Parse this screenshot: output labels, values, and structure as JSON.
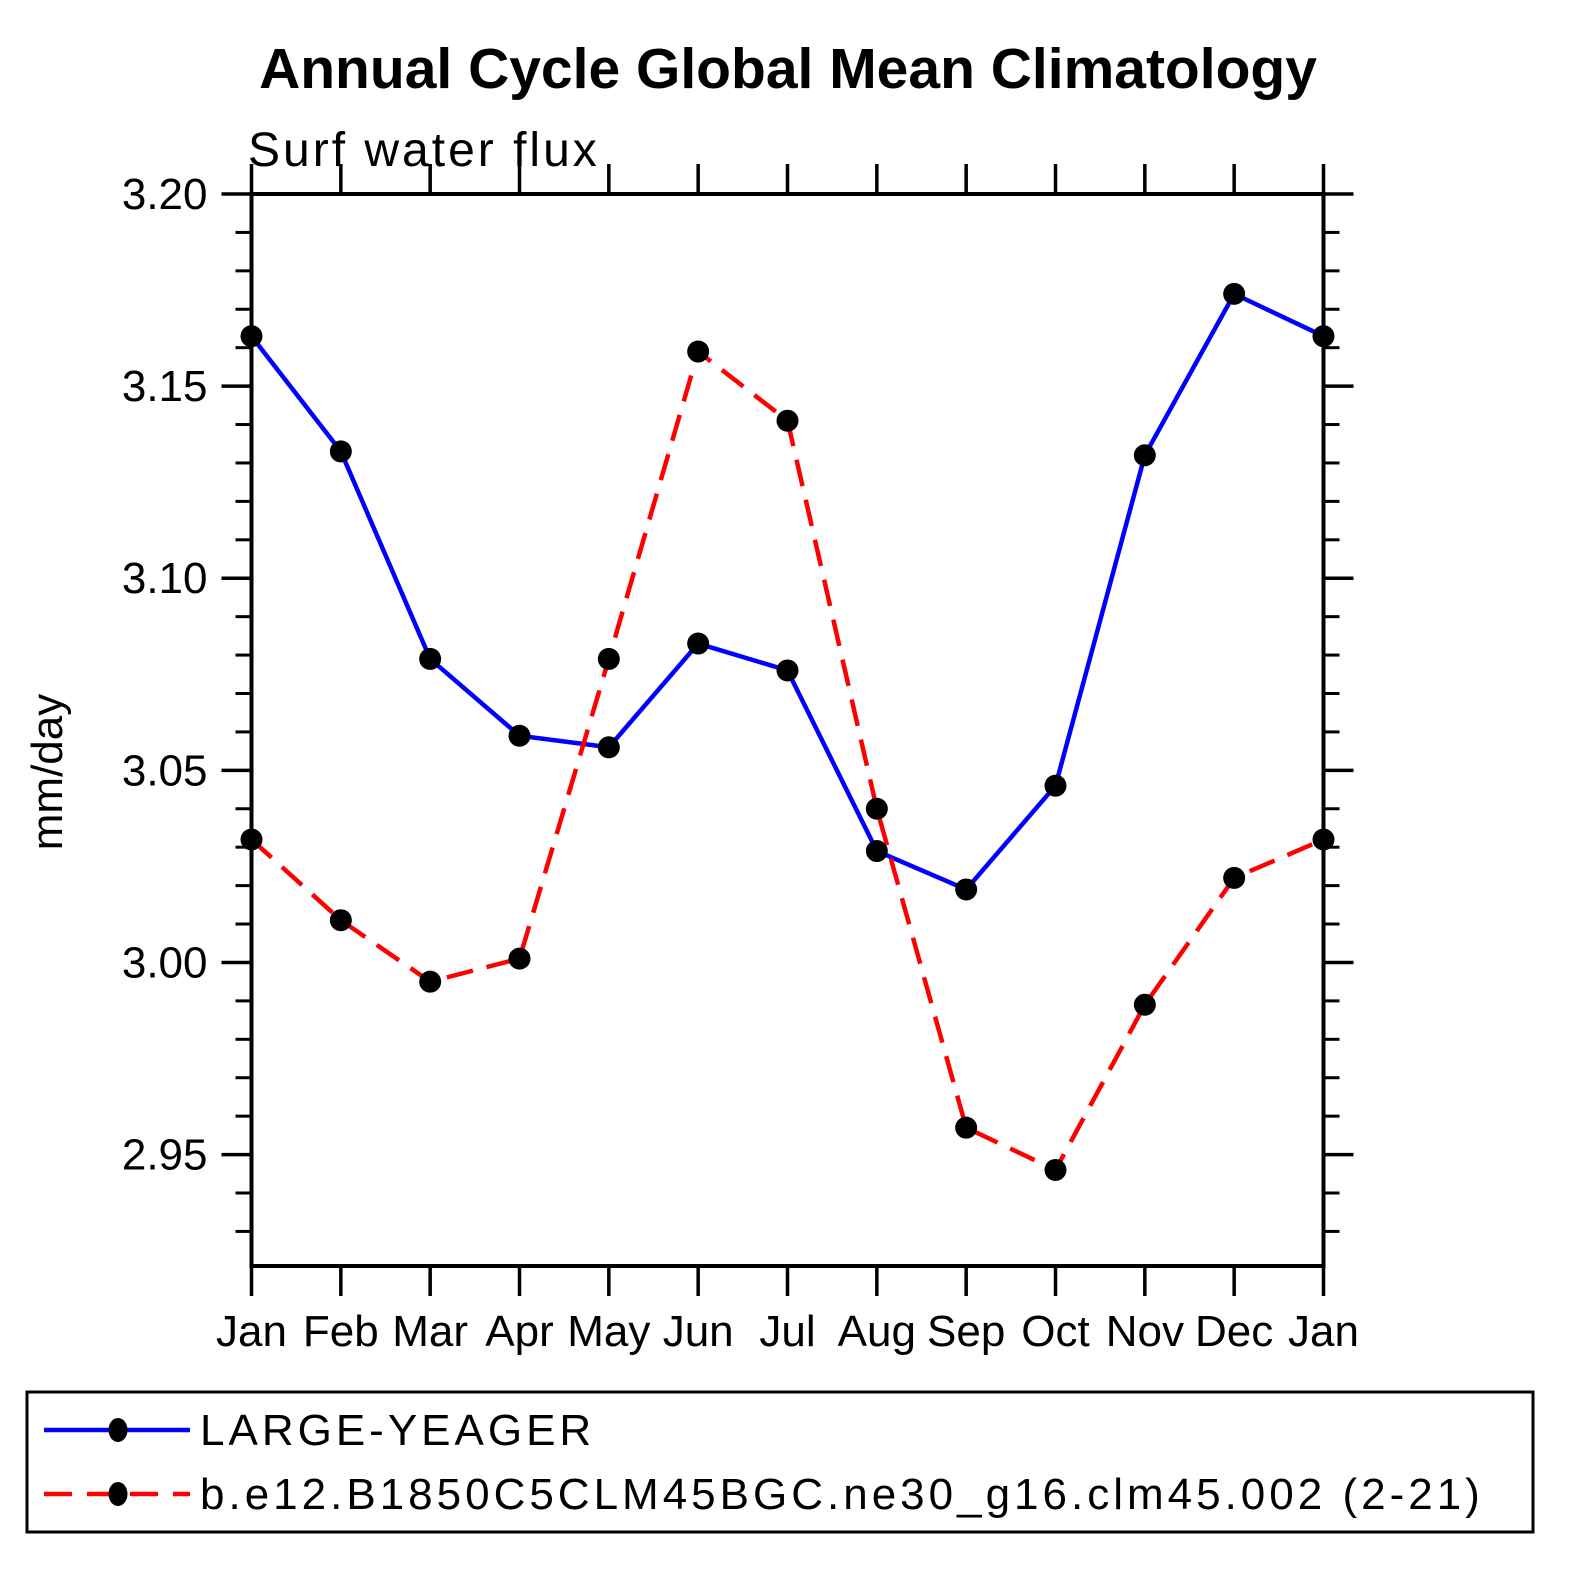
{
  "chart_data": {
    "type": "line",
    "title": "Annual Cycle Global Mean Climatology",
    "subtitle": "Surf water flux",
    "ylabel": "mm/day",
    "categories": [
      "Jan",
      "Feb",
      "Mar",
      "Apr",
      "May",
      "Jun",
      "Jul",
      "Aug",
      "Sep",
      "Oct",
      "Nov",
      "Dec",
      "Jan"
    ],
    "ylim": [
      2.921,
      3.2
    ],
    "ytick_major": [
      2.95,
      3.0,
      3.05,
      3.1,
      3.15,
      3.2
    ],
    "ytick_minor_step": 0.01,
    "grid": false,
    "legend_position": "bottom",
    "frame_color": "#000000",
    "marker_color": "#000000",
    "series": [
      {
        "name": "LARGE-YEAGER",
        "color": "#0000ff",
        "style": "solid",
        "marker": "circle",
        "values": [
          3.163,
          3.133,
          3.079,
          3.059,
          3.056,
          3.083,
          3.076,
          3.029,
          3.019,
          3.046,
          3.132,
          3.174,
          3.163
        ]
      },
      {
        "name": "b.e12.B1850C5CLM45BGC.ne30_g16.clm45.002 (2-21)",
        "color": "#ff0000",
        "style": "dashed",
        "marker": "circle",
        "values": [
          3.032,
          3.011,
          2.995,
          3.001,
          3.079,
          3.159,
          3.141,
          3.04,
          2.957,
          2.946,
          2.989,
          3.022,
          3.032
        ]
      }
    ]
  }
}
